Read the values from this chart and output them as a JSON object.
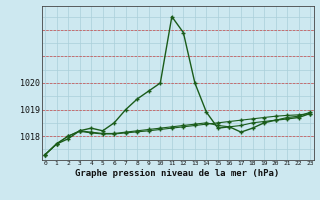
{
  "xlabel": "Graphe pression niveau de la mer (hPa)",
  "ylabel": "",
  "bg_color": "#cde8f0",
  "grid_color": "#aacfda",
  "line_color": "#1a5c1a",
  "x": [
    0,
    1,
    2,
    3,
    4,
    5,
    6,
    7,
    8,
    9,
    10,
    11,
    12,
    13,
    14,
    15,
    16,
    17,
    18,
    19,
    20,
    21,
    22,
    23
  ],
  "y_main": [
    1017.3,
    1017.7,
    1017.9,
    1018.2,
    1018.3,
    1018.2,
    1018.5,
    1019.0,
    1019.4,
    1019.7,
    1020.0,
    1022.5,
    1021.9,
    1020.0,
    1018.9,
    1018.3,
    1018.35,
    1018.15,
    1018.3,
    1018.5,
    1018.6,
    1018.65,
    1018.7,
    1018.85
  ],
  "y_line2": [
    1017.3,
    1017.7,
    1018.0,
    1018.2,
    1018.15,
    1018.1,
    1018.1,
    1018.15,
    1018.2,
    1018.25,
    1018.3,
    1018.35,
    1018.4,
    1018.45,
    1018.5,
    1018.4,
    1018.35,
    1018.4,
    1018.5,
    1018.55,
    1018.6,
    1018.7,
    1018.75,
    1018.9
  ],
  "y_line3": [
    1017.3,
    1017.72,
    1018.0,
    1018.18,
    1018.12,
    1018.08,
    1018.08,
    1018.12,
    1018.16,
    1018.2,
    1018.25,
    1018.3,
    1018.35,
    1018.4,
    1018.45,
    1018.5,
    1018.55,
    1018.6,
    1018.65,
    1018.7,
    1018.75,
    1018.78,
    1018.8,
    1018.85
  ],
  "yticks": [
    1018,
    1019,
    1020
  ],
  "ylim": [
    1017.1,
    1022.9
  ],
  "xlim": [
    -0.3,
    23.3
  ],
  "xtick_labels": [
    "0",
    "1",
    "2",
    "3",
    "4",
    "5",
    "6",
    "7",
    "8",
    "9",
    "10",
    "11",
    "12",
    "13",
    "14",
    "15",
    "16",
    "17",
    "18",
    "19",
    "20",
    "21",
    "22",
    "23"
  ]
}
